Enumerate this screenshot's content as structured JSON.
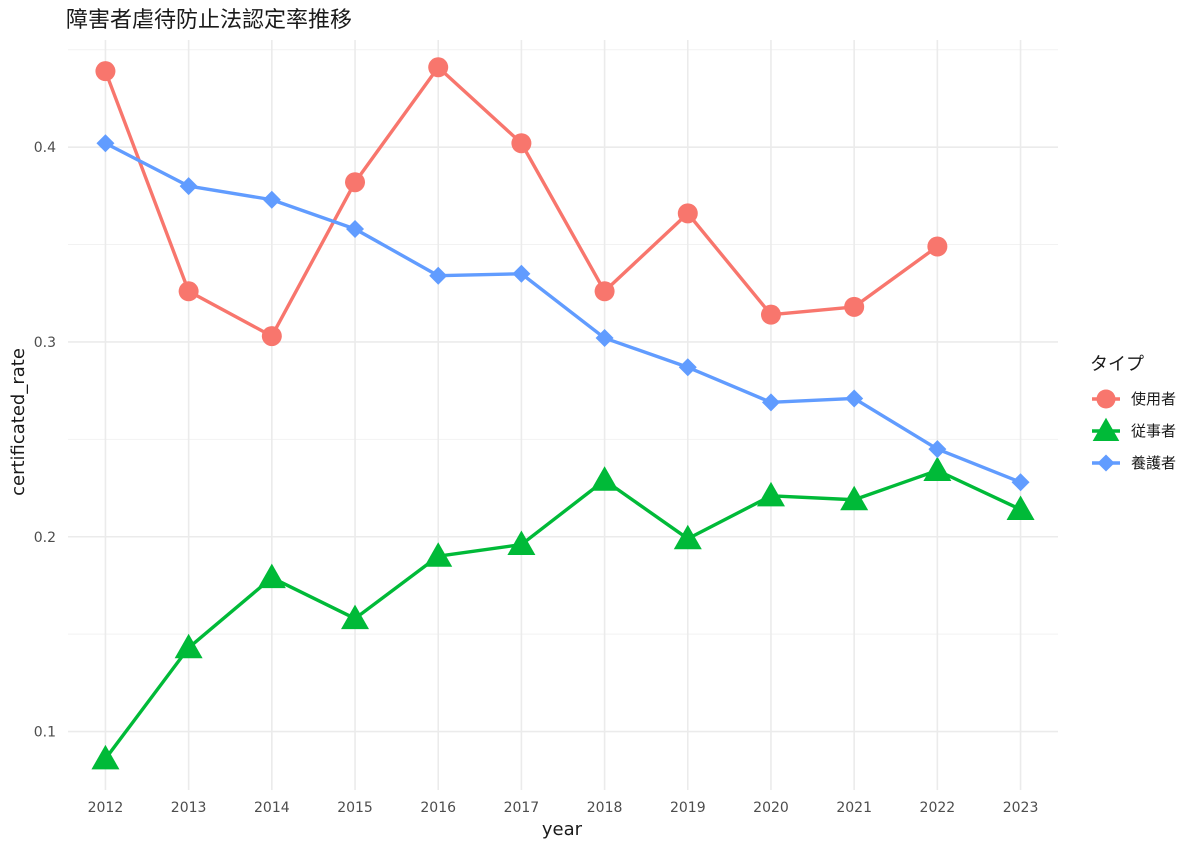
{
  "chart_data": {
    "type": "line",
    "title": "障害者虐待防止法認定率推移",
    "xlabel": "year",
    "ylabel": "certificated_rate",
    "x": [
      2012,
      2013,
      2014,
      2015,
      2016,
      2017,
      2018,
      2019,
      2020,
      2021,
      2022,
      2023
    ],
    "xlim": [
      2011.55,
      2023.45
    ],
    "ylim": [
      0.07,
      0.455
    ],
    "yticks": [
      0.1,
      0.2,
      0.3,
      0.4
    ],
    "ytick_labels": [
      "0.1",
      "0.2",
      "0.3",
      "0.4"
    ],
    "grid": true,
    "legend": {
      "title": "タイプ",
      "position": "right"
    },
    "series": [
      {
        "name": "使用者",
        "color": "#F8766D",
        "marker": "circle",
        "values": [
          0.439,
          0.326,
          0.303,
          0.382,
          0.441,
          0.402,
          0.326,
          0.366,
          0.314,
          0.318,
          0.349,
          null
        ]
      },
      {
        "name": "従事者",
        "color": "#00BA38",
        "marker": "triangle",
        "values": [
          0.086,
          0.143,
          0.179,
          0.158,
          0.19,
          0.196,
          0.229,
          0.199,
          0.221,
          0.219,
          0.234,
          0.214
        ]
      },
      {
        "name": "養護者",
        "color": "#619CFF",
        "marker": "diamond",
        "values": [
          0.402,
          0.38,
          0.373,
          0.358,
          0.334,
          0.335,
          0.302,
          0.287,
          0.269,
          0.271,
          0.245,
          0.228
        ]
      }
    ]
  }
}
